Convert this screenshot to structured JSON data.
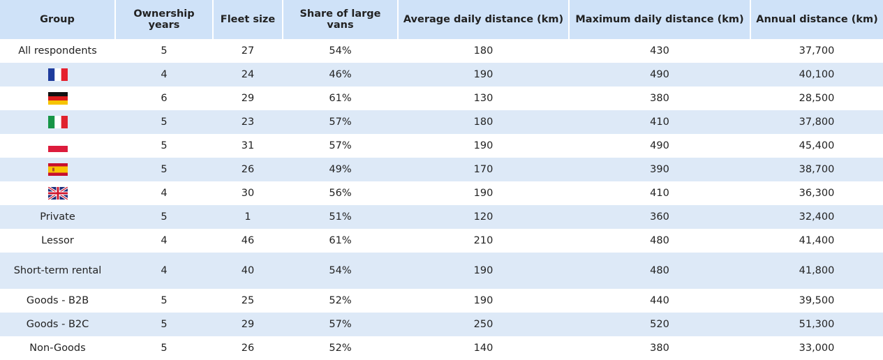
{
  "table": {
    "headers": [
      "Group",
      "Ownership years",
      "Fleet size",
      "Share of large vans",
      "Average daily distance (km)",
      "Maximum daily distance (km)",
      "Annual distance (km)"
    ],
    "rows": [
      [
        "All respondents",
        "5",
        "27",
        "54%",
        "180",
        "430",
        "37,700"
      ],
      [
        null,
        "4",
        "24",
        "46%",
        "190",
        "490",
        "40,100"
      ],
      [
        null,
        "6",
        "29",
        "61%",
        "130",
        "380",
        "28,500"
      ],
      [
        null,
        "5",
        "23",
        "57%",
        "180",
        "410",
        "37,800"
      ],
      [
        null,
        "5",
        "31",
        "57%",
        "190",
        "490",
        "45,400"
      ],
      [
        null,
        "5",
        "26",
        "49%",
        "170",
        "390",
        "38,700"
      ],
      [
        null,
        "4",
        "30",
        "56%",
        "190",
        "410",
        "36,300"
      ],
      [
        "Private",
        "5",
        "1",
        "51%",
        "120",
        "360",
        "32,400"
      ],
      [
        "Lessor",
        "4",
        "46",
        "61%",
        "210",
        "480",
        "41,400"
      ],
      [
        "Short-term rental",
        "4",
        "40",
        "54%",
        "190",
        "480",
        "41,800"
      ],
      [
        "Goods - B2B",
        "5",
        "25",
        "52%",
        "190",
        "440",
        "39,500"
      ],
      [
        "Goods - B2C",
        "5",
        "29",
        "57%",
        "250",
        "520",
        "51,300"
      ],
      [
        "Non-Goods",
        "5",
        "26",
        "52%",
        "140",
        "380",
        "33,000"
      ]
    ]
  }
}
